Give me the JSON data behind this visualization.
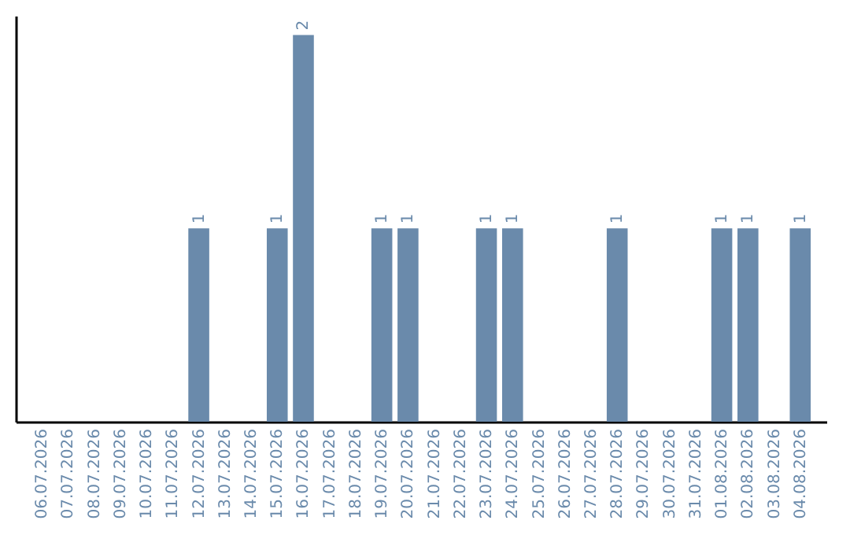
{
  "chart_data": {
    "type": "bar",
    "categories": [
      "06.07.2026",
      "07.07.2026",
      "08.07.2026",
      "09.07.2026",
      "10.07.2026",
      "11.07.2026",
      "12.07.2026",
      "13.07.2026",
      "14.07.2026",
      "15.07.2026",
      "16.07.2026",
      "17.07.2026",
      "18.07.2026",
      "19.07.2026",
      "20.07.2026",
      "21.07.2026",
      "22.07.2026",
      "23.07.2026",
      "24.07.2026",
      "25.07.2026",
      "26.07.2026",
      "27.07.2026",
      "28.07.2026",
      "29.07.2026",
      "30.07.2026",
      "31.07.2026",
      "01.08.2026",
      "02.08.2026",
      "03.08.2026",
      "04.08.2026"
    ],
    "values": [
      0,
      0,
      0,
      0,
      0,
      0,
      1,
      0,
      0,
      1,
      2,
      0,
      0,
      1,
      1,
      0,
      0,
      1,
      1,
      0,
      0,
      0,
      1,
      0,
      0,
      0,
      1,
      1,
      0,
      1
    ],
    "value_labels": [
      null,
      null,
      null,
      null,
      null,
      null,
      "1",
      null,
      null,
      "1",
      "2",
      null,
      null,
      "1",
      "1",
      null,
      null,
      "1",
      "1",
      null,
      null,
      null,
      "1",
      null,
      null,
      null,
      "1",
      "1",
      null,
      "1"
    ],
    "color": "#6a8aab",
    "ylim": [
      0,
      2.1
    ],
    "tick_labels": "x"
  }
}
